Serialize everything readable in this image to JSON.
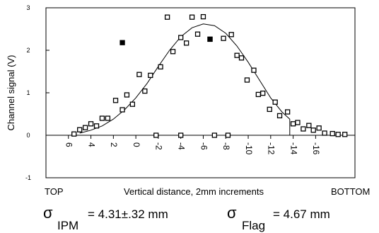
{
  "chart_data": {
    "type": "scatter",
    "ylabel": "Channel signal (V)",
    "xlabel": "Vertical distance,  2mm increments",
    "left_label": "TOP",
    "right_label": "BOTTOM",
    "xlim": [
      8,
      -19.5
    ],
    "ylim": [
      -1,
      3
    ],
    "y_ticks": [
      "-1",
      "0",
      "1",
      "2",
      "3"
    ],
    "x_ticks": [
      {
        "x": 6,
        "label": "6"
      },
      {
        "x": 4,
        "label": "4"
      },
      {
        "x": 2,
        "label": "2"
      },
      {
        "x": 0,
        "label": "0"
      },
      {
        "x": -2,
        "label": "-2"
      },
      {
        "x": -4,
        "label": "-4"
      },
      {
        "x": -6,
        "label": "-6"
      },
      {
        "x": -8,
        "label": "-8"
      },
      {
        "x": -10,
        "label": "-10"
      },
      {
        "x": -12,
        "label": "-12"
      },
      {
        "x": -14,
        "label": "-14"
      },
      {
        "x": -16,
        "label": "-16"
      }
    ],
    "series": [
      {
        "marker": "open-square",
        "points": [
          [
            5.5,
            0.03
          ],
          [
            5.0,
            0.13
          ],
          [
            4.5,
            0.18
          ],
          [
            4.0,
            0.27
          ],
          [
            3.5,
            0.22
          ],
          [
            3.0,
            0.4
          ],
          [
            2.5,
            0.4
          ],
          [
            1.8,
            0.82
          ],
          [
            1.2,
            0.6
          ],
          [
            0.8,
            0.95
          ],
          [
            0.3,
            0.73
          ],
          [
            -0.3,
            1.43
          ],
          [
            -0.8,
            1.04
          ],
          [
            -1.3,
            1.41
          ],
          [
            -2.2,
            1.61
          ],
          [
            -2.8,
            2.78
          ],
          [
            -3.3,
            1.97
          ],
          [
            -4.0,
            2.3
          ],
          [
            -4.5,
            2.17
          ],
          [
            -5.0,
            2.78
          ],
          [
            -5.5,
            2.38
          ],
          [
            -6.0,
            2.79
          ],
          [
            -6.6,
            2.26
          ],
          [
            -7.8,
            2.28
          ],
          [
            -8.5,
            2.37
          ],
          [
            -9.0,
            1.88
          ],
          [
            -9.4,
            1.82
          ],
          [
            -9.9,
            1.3
          ],
          [
            -10.5,
            1.53
          ],
          [
            -10.9,
            0.96
          ],
          [
            -11.3,
            0.99
          ],
          [
            -11.9,
            0.61
          ],
          [
            -12.4,
            0.78
          ],
          [
            -12.8,
            0.46
          ],
          [
            -13.5,
            0.55
          ],
          [
            -14.0,
            0.27
          ],
          [
            -14.4,
            0.3
          ],
          [
            -14.9,
            0.15
          ],
          [
            -15.4,
            0.23
          ],
          [
            -15.8,
            0.12
          ],
          [
            -16.3,
            0.17
          ],
          [
            -16.8,
            0.05
          ],
          [
            -17.5,
            0.04
          ],
          [
            -18.0,
            0.02
          ],
          [
            -18.6,
            0.02
          ],
          [
            -1.8,
            0.0
          ],
          [
            -4.0,
            0.0
          ],
          [
            -7.0,
            0.0
          ],
          [
            -8.2,
            0.0
          ]
        ]
      },
      {
        "marker": "filled-square",
        "points": [
          [
            1.2,
            2.18
          ],
          [
            -6.6,
            2.26
          ]
        ]
      },
      {
        "marker": "line",
        "points": [
          [
            5.0,
            0.05
          ],
          [
            4.0,
            0.12
          ],
          [
            3.0,
            0.22
          ],
          [
            2.0,
            0.38
          ],
          [
            1.0,
            0.6
          ],
          [
            0.0,
            0.88
          ],
          [
            -1.0,
            1.22
          ],
          [
            -2.0,
            1.62
          ],
          [
            -3.0,
            2.0
          ],
          [
            -4.0,
            2.32
          ],
          [
            -5.0,
            2.53
          ],
          [
            -6.0,
            2.62
          ],
          [
            -7.0,
            2.58
          ],
          [
            -8.0,
            2.4
          ],
          [
            -9.0,
            2.1
          ],
          [
            -10.0,
            1.72
          ],
          [
            -11.0,
            1.3
          ],
          [
            -12.0,
            0.88
          ],
          [
            -13.0,
            0.55
          ],
          [
            -13.7,
            0.38
          ],
          [
            -13.7,
            0.0
          ]
        ]
      }
    ],
    "annotations": {
      "sigma1_symbol": "σ",
      "sigma1_sub": "IPM",
      "sigma1_value": "= 4.31±.32 mm",
      "sigma2_symbol": "σ",
      "sigma2_sub": "Flag",
      "sigma2_value": "= 4.67 mm"
    }
  }
}
